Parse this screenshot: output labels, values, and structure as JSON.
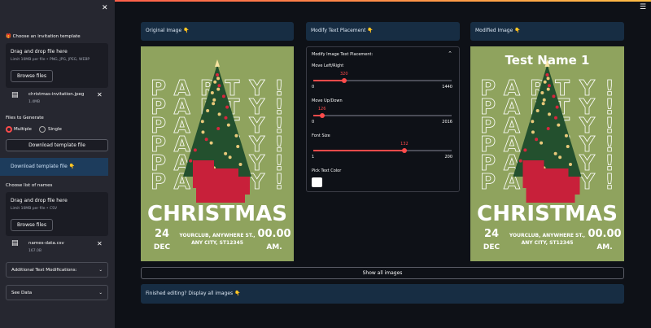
{
  "sidebar": {
    "template_section": {
      "label": "🎁 Choose an invitation template",
      "dropzone_title": "Drag and drop file here",
      "dropzone_limit": "Limit 10MB per file • PNG, JPG, JPEG, WEBP",
      "browse_button": "Browse files",
      "file_name": "christmas-invitation.jpeg",
      "file_size": "1.4MB"
    },
    "files_to_generate": {
      "label": "Files to Generate",
      "options": [
        "Multiple",
        "Single"
      ]
    },
    "download_button": "Download template file",
    "download_info": "Download template file 👇",
    "names_section": {
      "label": "Choose list of names",
      "dropzone_title": "Drag and drop file here",
      "dropzone_limit": "Limit 10MB per file • CSV",
      "browse_button": "Browse files",
      "file_name": "names-data.csv",
      "file_size": "167.0B"
    },
    "expanders": [
      "Additional Text Modifications:",
      "See Data"
    ]
  },
  "main": {
    "columns": [
      "Original Image 👇",
      "Modify Text Placement 👇",
      "Modified Image 👇"
    ],
    "placement_panel": {
      "title": "Modify Image Text Placement:",
      "sliders": [
        {
          "label": "Move Left/Right",
          "value": 320,
          "min": 0,
          "max": 1440
        },
        {
          "label": "Move Up/Down",
          "value": 126,
          "min": 0,
          "max": 2016
        },
        {
          "label": "Font Size",
          "value": 132,
          "min": 1,
          "max": 200
        }
      ],
      "color_label": "Pick Text Color"
    },
    "poster": {
      "party": "PARTY!",
      "christmas": "CHRISTMAS",
      "day": "24",
      "month": "DEC",
      "address_line1": "YOURCLUB, ANYWHERE ST.,",
      "address_line2": "ANY CITY, ST12345",
      "time": "00.00",
      "meridiem": "AM."
    },
    "modified_name": "Test Name 1",
    "show_all_button": "Show all images",
    "finished_info": "Finished editing? Display all images 👇"
  }
}
